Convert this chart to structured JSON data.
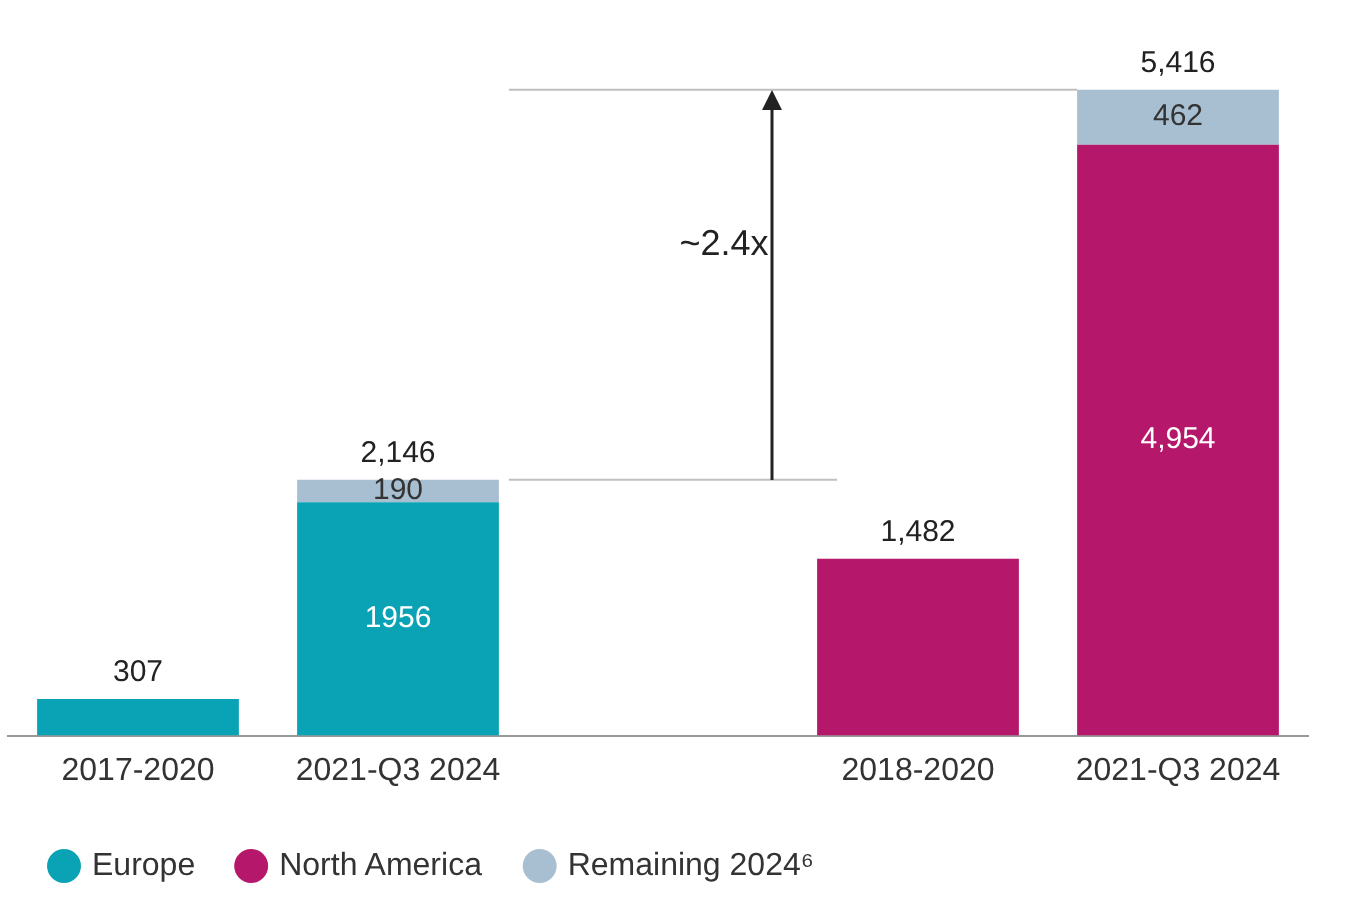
{
  "chart_data": {
    "type": "bar",
    "stacked": true,
    "categories": [
      "2017-2020",
      "2021-Q3 2024",
      null,
      "2018-2020",
      "2021-Q3 2024"
    ],
    "series": [
      {
        "name": "Europe",
        "color": "#0aa2b5",
        "values": [
          307,
          1956,
          null,
          null,
          null
        ],
        "value_labels": [
          null,
          "1956",
          null,
          null,
          null
        ]
      },
      {
        "name": "North America",
        "color": "#b5176b",
        "values": [
          null,
          null,
          null,
          1482,
          4954
        ],
        "value_labels": [
          null,
          null,
          null,
          null,
          "4,954"
        ]
      },
      {
        "name": "Remaining 2024⁶",
        "color": "#a8bfd1",
        "values": [
          null,
          190,
          null,
          null,
          462
        ],
        "value_labels": [
          null,
          "190",
          null,
          null,
          "462"
        ]
      }
    ],
    "totals": [
      "307",
      "2,146",
      null,
      "1,482",
      "5,416"
    ],
    "ref_lines": [
      {
        "axis": "y",
        "value": 2146,
        "color": "#bfbfbf"
      },
      {
        "axis": "y",
        "value": 5416,
        "color": "#bfbfbf"
      }
    ],
    "annotations": [
      "~2.4x"
    ],
    "legend": "bottom",
    "grid": false,
    "tick_labels": "x"
  }
}
